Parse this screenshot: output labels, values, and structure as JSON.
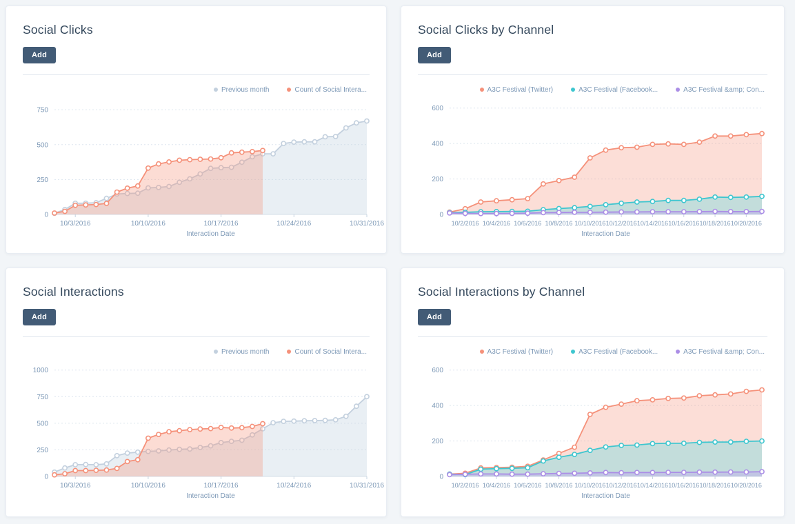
{
  "theme": {
    "page_background": "#f2f5f8",
    "card_background": "#ffffff",
    "title_color": "#33475b",
    "add_button_background": "#425b76",
    "axis_text_color": "#7c98b6",
    "gridline_color": "#dde6ef"
  },
  "cards": [
    {
      "title": "Social Clicks",
      "add_label": "Add"
    },
    {
      "title": "Social Clicks by Channel",
      "add_label": "Add"
    },
    {
      "title": "Social Interactions",
      "add_label": "Add"
    },
    {
      "title": "Social Interactions by Channel",
      "add_label": "Add"
    }
  ],
  "chart_data": [
    {
      "type": "area",
      "title": "Social Clicks",
      "xlabel": "Interaction Date",
      "ylabel": "",
      "grid": "dashed-horizontal",
      "legend_position": "top-right",
      "x_count": 31,
      "x_ticks": [
        "10/3/2016",
        "10/10/2016",
        "10/17/2016",
        "10/24/2016",
        "10/31/2016"
      ],
      "x_tick_indices": [
        2,
        9,
        16,
        23,
        30
      ],
      "y_ticks": [
        0,
        250,
        500,
        750
      ],
      "ylim": [
        0,
        800
      ],
      "series": [
        {
          "name": "Previous month",
          "color": "#c3d0de",
          "fill": "rgba(197,212,226,0.38)",
          "values": [
            8,
            35,
            80,
            80,
            84,
            115,
            146,
            150,
            152,
            190,
            193,
            200,
            230,
            255,
            290,
            330,
            335,
            338,
            374,
            413,
            434,
            434,
            508,
            518,
            520,
            520,
            556,
            558,
            620,
            656,
            669
          ]
        },
        {
          "name": "Count of Social Intera...",
          "color": "#f5917a",
          "fill": "rgba(245,145,122,0.32)",
          "values": [
            10,
            22,
            65,
            68,
            71,
            79,
            160,
            188,
            204,
            332,
            362,
            376,
            388,
            392,
            395,
            397,
            406,
            441,
            446,
            450,
            458
          ]
        }
      ]
    },
    {
      "type": "area",
      "title": "Social Clicks by Channel",
      "xlabel": "Interaction Date",
      "ylabel": "",
      "grid": "dashed-horizontal",
      "legend_position": "top-right",
      "x_count": 21,
      "x_ticks": [
        "10/2/2016",
        "10/4/2016",
        "10/6/2016",
        "10/8/2016",
        "10/10/2016",
        "10/12/2016",
        "10/14/2016",
        "10/16/2016",
        "10/18/2016",
        "10/20/2016"
      ],
      "x_tick_indices": [
        1,
        3,
        5,
        7,
        9,
        11,
        13,
        15,
        17,
        19
      ],
      "y_ticks": [
        0,
        200,
        400,
        600
      ],
      "ylim": [
        0,
        630
      ],
      "series": [
        {
          "name": "A3C Festival (Twitter)",
          "color": "#f5917a",
          "fill": "rgba(245,145,122,0.30)",
          "values": [
            13,
            32,
            70,
            77,
            83,
            89,
            172,
            191,
            210,
            319,
            363,
            376,
            379,
            395,
            398,
            395,
            408,
            442,
            442,
            450,
            456
          ]
        },
        {
          "name": "A3C Festival (Facebook...",
          "color": "#3ec6cf",
          "fill": "rgba(110,219,224,0.40)",
          "values": [
            10,
            12,
            15,
            16,
            17,
            18,
            27,
            33,
            38,
            45,
            55,
            63,
            70,
            73,
            79,
            79,
            86,
            98,
            96,
            98,
            102
          ]
        },
        {
          "name": "A3C Festival &amp; Con...",
          "color": "#ab8ee6",
          "fill": "rgba(190,170,238,0.45)",
          "values": [
            8,
            6,
            5,
            5,
            6,
            7,
            10,
            11,
            12,
            12,
            13,
            14,
            14,
            15,
            15,
            15,
            16,
            17,
            16,
            16,
            17
          ]
        }
      ]
    },
    {
      "type": "area",
      "title": "Social Interactions",
      "xlabel": "Interaction Date",
      "ylabel": "",
      "grid": "dashed-horizontal",
      "legend_position": "top-right",
      "x_count": 31,
      "x_ticks": [
        "10/3/2016",
        "10/10/2016",
        "10/17/2016",
        "10/24/2016",
        "10/31/2016"
      ],
      "x_tick_indices": [
        2,
        9,
        16,
        23,
        30
      ],
      "y_ticks": [
        0,
        250,
        500,
        750,
        1000
      ],
      "ylim": [
        0,
        1050
      ],
      "series": [
        {
          "name": "Previous month",
          "color": "#c3d0de",
          "fill": "rgba(197,212,226,0.38)",
          "values": [
            40,
            80,
            110,
            112,
            110,
            118,
            195,
            220,
            228,
            235,
            240,
            248,
            255,
            258,
            272,
            288,
            318,
            330,
            340,
            390,
            448,
            505,
            518,
            520,
            523,
            525,
            527,
            532,
            565,
            660,
            750
          ]
        },
        {
          "name": "Count of Social Intera...",
          "color": "#f5917a",
          "fill": "rgba(245,145,122,0.32)",
          "values": [
            15,
            25,
            55,
            55,
            58,
            60,
            75,
            140,
            157,
            360,
            395,
            420,
            430,
            440,
            446,
            450,
            461,
            455,
            458,
            470,
            496
          ]
        }
      ]
    },
    {
      "type": "area",
      "title": "Social Interactions by Channel",
      "xlabel": "Interaction Date",
      "ylabel": "",
      "grid": "dashed-horizontal",
      "legend_position": "top-right",
      "x_count": 21,
      "x_ticks": [
        "10/2/2016",
        "10/4/2016",
        "10/6/2016",
        "10/8/2016",
        "10/10/2016",
        "10/12/2016",
        "10/14/2016",
        "10/16/2016",
        "10/18/2016",
        "10/20/2016"
      ],
      "x_tick_indices": [
        1,
        3,
        5,
        7,
        9,
        11,
        13,
        15,
        17,
        19
      ],
      "y_ticks": [
        0,
        200,
        400,
        600
      ],
      "ylim": [
        0,
        630
      ],
      "series": [
        {
          "name": "A3C Festival (Twitter)",
          "color": "#f5917a",
          "fill": "rgba(245,145,122,0.30)",
          "values": [
            13,
            18,
            48,
            50,
            52,
            57,
            93,
            130,
            165,
            350,
            390,
            408,
            427,
            432,
            440,
            442,
            455,
            460,
            465,
            480,
            488
          ]
        },
        {
          "name": "A3C Festival (Facebook...",
          "color": "#3ec6cf",
          "fill": "rgba(110,219,224,0.40)",
          "values": [
            13,
            10,
            41,
            44,
            46,
            49,
            87,
            108,
            124,
            147,
            166,
            175,
            177,
            185,
            187,
            187,
            192,
            194,
            194,
            198,
            200
          ]
        },
        {
          "name": "A3C Festival &amp; Con...",
          "color": "#ab8ee6",
          "fill": "rgba(190,170,238,0.45)",
          "values": [
            10,
            12,
            14,
            14,
            13,
            13,
            15,
            17,
            18,
            20,
            22,
            21,
            22,
            22,
            23,
            23,
            24,
            24,
            25,
            25,
            27
          ]
        }
      ]
    }
  ]
}
